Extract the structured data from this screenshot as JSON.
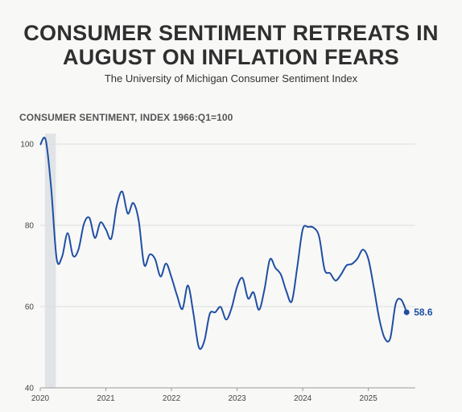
{
  "title_line1": "CONSUMER SENTIMENT RETREATS IN",
  "title_line2": "AUGUST ON INFLATION FEARS",
  "subtitle": "The University of Michigan Consumer Sentiment Index",
  "chart_data": {
    "type": "line",
    "title": "CONSUMER SENTIMENT RETREATS IN AUGUST ON INFLATION FEARS",
    "subtitle": "The University of Michigan Consumer Sentiment Index",
    "ylabel": "CONSUMER SENTIMENT, INDEX 1966:Q1=100",
    "xlabel": "",
    "ylim": [
      40,
      100
    ],
    "xlim": [
      "2020-01",
      "2025-09"
    ],
    "yticks": [
      "40",
      "60",
      "80",
      "100"
    ],
    "xticks": [
      "2020",
      "2021",
      "2022",
      "2023",
      "2024",
      "2025"
    ],
    "grid": "horizontal",
    "recession_shading": [
      "2020-02",
      "2020-04"
    ],
    "end_label": "58.6",
    "line_color": "#1f4fa3",
    "series": [
      {
        "x": [
          "2020-01",
          "2020-02",
          "2020-03",
          "2020-04",
          "2020-05",
          "2020-06",
          "2020-07",
          "2020-08",
          "2020-09",
          "2020-10",
          "2020-11",
          "2020-12",
          "2021-01",
          "2021-02",
          "2021-03",
          "2021-04",
          "2021-05",
          "2021-06",
          "2021-07",
          "2021-08",
          "2021-09",
          "2021-10",
          "2021-11",
          "2021-12",
          "2022-01",
          "2022-02",
          "2022-03",
          "2022-04",
          "2022-05",
          "2022-06",
          "2022-07",
          "2022-08",
          "2022-09",
          "2022-10",
          "2022-11",
          "2022-12",
          "2023-01",
          "2023-02",
          "2023-03",
          "2023-04",
          "2023-05",
          "2023-06",
          "2023-07",
          "2023-08",
          "2023-09",
          "2023-10",
          "2023-11",
          "2023-12",
          "2024-01",
          "2024-02",
          "2024-03",
          "2024-04",
          "2024-05",
          "2024-06",
          "2024-07",
          "2024-08",
          "2024-09",
          "2024-10",
          "2024-11",
          "2024-12",
          "2025-01",
          "2025-02",
          "2025-03",
          "2025-04",
          "2025-05",
          "2025-06",
          "2025-07",
          "2025-08"
        ],
        "values": [
          99.8,
          101.0,
          89.1,
          71.8,
          72.3,
          78.1,
          72.5,
          74.1,
          80.4,
          81.8,
          76.9,
          80.7,
          79.0,
          76.8,
          84.9,
          88.3,
          82.9,
          85.5,
          81.2,
          70.3,
          72.8,
          71.7,
          67.4,
          70.6,
          67.2,
          62.8,
          59.4,
          65.2,
          58.4,
          50.0,
          51.5,
          58.2,
          58.6,
          59.9,
          56.8,
          59.7,
          64.9,
          67.0,
          62.0,
          63.5,
          59.2,
          64.2,
          71.6,
          69.5,
          67.9,
          63.8,
          61.3,
          69.7,
          79.0,
          79.6,
          79.4,
          77.2,
          69.1,
          68.2,
          66.4,
          67.9,
          70.1,
          70.5,
          71.8,
          74.0,
          71.7,
          64.7,
          57.0,
          52.2,
          52.2,
          60.7,
          61.7,
          58.6
        ]
      }
    ]
  }
}
